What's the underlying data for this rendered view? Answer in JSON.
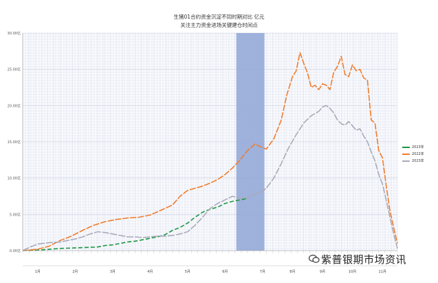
{
  "chart_data": {
    "type": "line",
    "title": "生猪01合约资金沉淀不同时期对比 亿元",
    "subtitle": "关注主力资金进场关键建仓时间点",
    "xlabel": "",
    "ylabel": "",
    "ylim": [
      0,
      30
    ],
    "y_ticks": [
      "0.00亿",
      "5.00亿",
      "10.00亿",
      "15.00亿",
      "20.00亿",
      "25.00亿",
      "30.00亿"
    ],
    "y_tick_values": [
      0,
      5,
      10,
      15,
      20,
      25,
      30
    ],
    "x_range": [
      0,
      100
    ],
    "month_labels": [
      "1月",
      "2月",
      "3月",
      "4月",
      "5月",
      "6月",
      "7月",
      "8月",
      "9月",
      "10月",
      "11月"
    ],
    "month_positions": [
      4,
      14,
      24,
      34,
      44,
      54,
      64,
      72,
      80,
      88,
      96
    ],
    "highlight": {
      "x_start": 57,
      "x_end": 64.5,
      "color": "#8fa6d6"
    },
    "grid": true,
    "legend_position": "right",
    "series": [
      {
        "name": "2023年",
        "color": "#1a9641",
        "dash": "6,3",
        "x": [
          0,
          5,
          10,
          15,
          20,
          22,
          24,
          26,
          28,
          30,
          32,
          34,
          36,
          38,
          40,
          42,
          44,
          46,
          48,
          50,
          52,
          54,
          56,
          58,
          60
        ],
        "y": [
          0.0,
          0.1,
          0.3,
          0.4,
          0.5,
          0.7,
          0.8,
          1.0,
          1.2,
          1.3,
          1.5,
          1.7,
          1.9,
          2.2,
          2.8,
          3.2,
          3.8,
          4.6,
          5.3,
          5.7,
          6.0,
          6.5,
          6.8,
          7.0,
          7.2
        ]
      },
      {
        "name": "2022年",
        "color": "#f07c2c",
        "dash": "9,2",
        "x": [
          0,
          4,
          7,
          10,
          13,
          16,
          19,
          22,
          25,
          28,
          31,
          34,
          37,
          40,
          42,
          44,
          46,
          48,
          50,
          52,
          54,
          56,
          58,
          60,
          62,
          64,
          65,
          67,
          69,
          70.5,
          72,
          73,
          74,
          75,
          76,
          77,
          78,
          79,
          80,
          81,
          82,
          83,
          84,
          85,
          86,
          87,
          88,
          89,
          90,
          91,
          92,
          93,
          94,
          95,
          96,
          97,
          98,
          99,
          100
        ],
        "y": [
          0.0,
          0.2,
          0.6,
          1.4,
          2.0,
          2.8,
          3.5,
          4.0,
          4.3,
          4.5,
          4.6,
          4.9,
          5.6,
          6.3,
          7.5,
          8.3,
          8.6,
          8.9,
          9.3,
          9.8,
          10.5,
          11.4,
          12.5,
          13.8,
          14.7,
          14.2,
          14.0,
          15.4,
          18.0,
          21.5,
          24.0,
          24.8,
          27.3,
          25.8,
          24.5,
          22.5,
          22.8,
          22.2,
          23.0,
          22.8,
          22.2,
          24.6,
          25.4,
          26.8,
          24.3,
          24.0,
          25.6,
          24.8,
          25.0,
          23.8,
          23.5,
          18.0,
          17.6,
          13.8,
          12.8,
          9.0,
          5.5,
          3.2,
          1.0
        ]
      },
      {
        "name": "2023年",
        "color": "#a9aab8",
        "dash": "10,2",
        "x": [
          0,
          2,
          4,
          7,
          10,
          12,
          14,
          16,
          18,
          20,
          22,
          24,
          26,
          28,
          30,
          32,
          34,
          36,
          38,
          40,
          42,
          44,
          46,
          48,
          50,
          52,
          54,
          56,
          58,
          60,
          62,
          64,
          65,
          67,
          69,
          71,
          73,
          75,
          77,
          79,
          80,
          81,
          82,
          83,
          84,
          85,
          86,
          87,
          88,
          89,
          90,
          91,
          92,
          93,
          94,
          95,
          96,
          97,
          98,
          99,
          100
        ],
        "y": [
          0.0,
          0.5,
          0.9,
          1.1,
          1.2,
          1.4,
          1.6,
          1.9,
          2.3,
          2.6,
          2.5,
          2.3,
          2.1,
          1.9,
          1.9,
          1.8,
          1.9,
          2.0,
          2.0,
          2.1,
          2.3,
          2.6,
          3.5,
          4.6,
          5.8,
          6.5,
          7.0,
          7.5,
          7.2,
          7.3,
          7.8,
          8.2,
          8.6,
          10.0,
          12.0,
          14.2,
          16.0,
          17.6,
          18.6,
          19.2,
          19.8,
          20.0,
          19.6,
          19.0,
          18.0,
          17.5,
          17.3,
          17.8,
          17.2,
          16.6,
          16.8,
          15.8,
          15.0,
          13.6,
          12.4,
          10.5,
          9.2,
          7.0,
          4.6,
          2.3,
          0.3
        ]
      }
    ]
  },
  "watermark": "紫普银期市场资讯"
}
